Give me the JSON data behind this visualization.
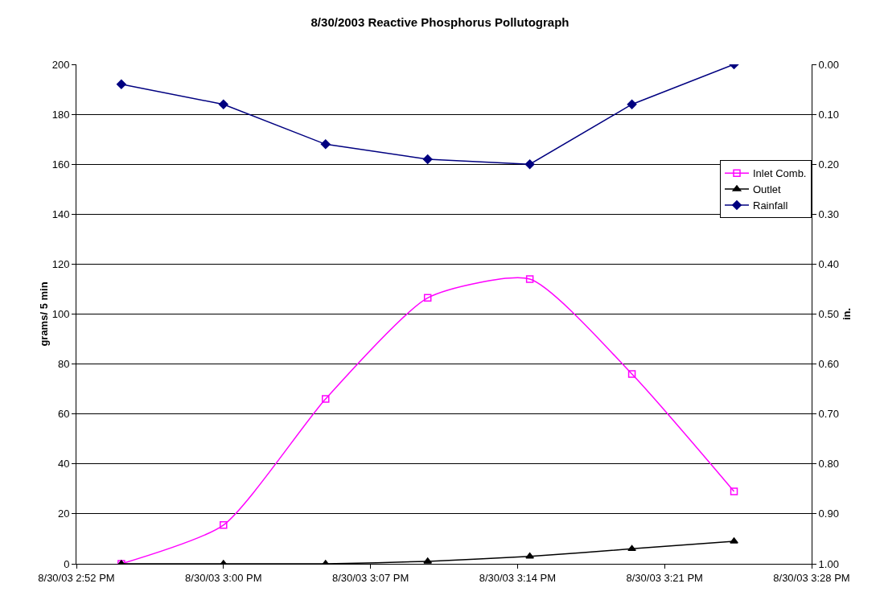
{
  "chart_data": {
    "type": "line",
    "title": "8/30/2003 Reactive Phosphorus Pollutograph",
    "ylabel": "grams/ 5 min",
    "y2label": "in.",
    "x": [
      "2003-08-30T14:55",
      "2003-08-30T15:00",
      "2003-08-30T15:05",
      "2003-08-30T15:10",
      "2003-08-30T15:15",
      "2003-08-30T15:20",
      "2003-08-30T15:25"
    ],
    "xlim": [
      "2003-08-30T14:52:48",
      "2003-08-30T15:28:48"
    ],
    "xticks": [
      {
        "value": "2003-08-30T14:52:48",
        "label": "8/30/03 2:52 PM"
      },
      {
        "value": "2003-08-30T15:00",
        "label": "8/30/03 3:00 PM"
      },
      {
        "value": "2003-08-30T15:07:12",
        "label": "8/30/03 3:07 PM"
      },
      {
        "value": "2003-08-30T15:14:24",
        "label": "8/30/03 3:14 PM"
      },
      {
        "value": "2003-08-30T15:21:36",
        "label": "8/30/03 3:21 PM"
      },
      {
        "value": "2003-08-30T15:28:48",
        "label": "8/30/03 3:28 PM"
      }
    ],
    "ylim": [
      0,
      200
    ],
    "yticks": [
      0,
      20,
      40,
      60,
      80,
      100,
      120,
      140,
      160,
      180,
      200
    ],
    "y2lim": [
      1.0,
      0.0
    ],
    "y2ticks": [
      {
        "value": 1.0,
        "label": "1.00"
      },
      {
        "value": 0.9,
        "label": "0.90"
      },
      {
        "value": 0.8,
        "label": "0.80"
      },
      {
        "value": 0.7,
        "label": "0.70"
      },
      {
        "value": 0.6,
        "label": "0.60"
      },
      {
        "value": 0.5,
        "label": "0.50"
      },
      {
        "value": 0.4,
        "label": "0.40"
      },
      {
        "value": 0.3,
        "label": "0.30"
      },
      {
        "value": 0.2,
        "label": "0.20"
      },
      {
        "value": 0.1,
        "label": "0.10"
      },
      {
        "value": 0.0,
        "label": "0.00"
      }
    ],
    "grid": "y",
    "legend": "right",
    "series": [
      {
        "name": "Inlet Comb.",
        "color": "#ff00ff",
        "marker": "square",
        "values": [
          0,
          15.5,
          66,
          106.5,
          114,
          76,
          29
        ]
      },
      {
        "name": "Outlet",
        "color": "#000000",
        "marker": "triangle",
        "values": [
          0,
          0,
          0,
          1,
          3,
          6,
          9
        ]
      },
      {
        "name": "Rainfall",
        "color": "#000080",
        "marker": "diamond",
        "axis": "y2",
        "values": [
          0.04,
          0.08,
          0.16,
          0.19,
          0.2,
          0.08,
          0.0
        ]
      }
    ]
  }
}
